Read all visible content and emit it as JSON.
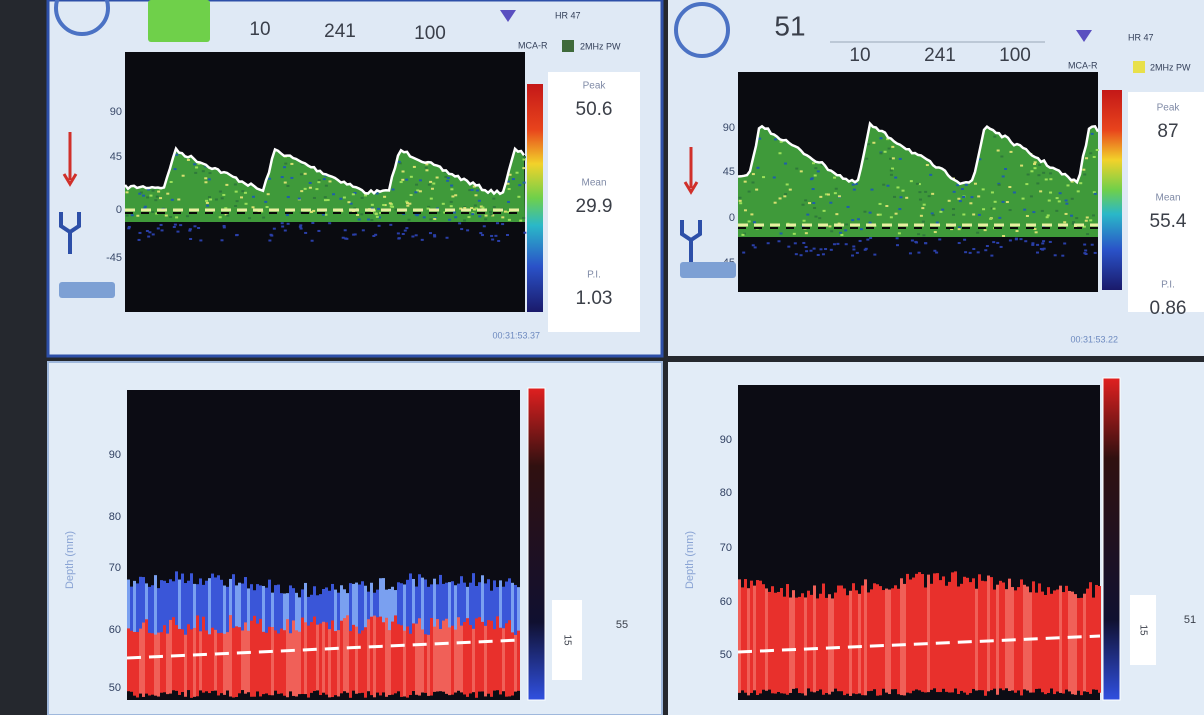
{
  "panels": [
    {
      "header": {
        "values": [
          "10",
          "241",
          "100"
        ],
        "hr": "HR 47",
        "vessel": "MCA-R",
        "mode": "2MHz PW"
      },
      "scale": [
        "90",
        "45",
        "0",
        "-45"
      ],
      "stats": [
        {
          "label": "Peak",
          "value": "50.6"
        },
        {
          "label": "Mean",
          "value": "29.9"
        },
        {
          "label": "P.I.",
          "value": "1.03"
        }
      ],
      "timestamp": "00:31:53.37"
    },
    {
      "header": {
        "gate": "51",
        "values": [
          "10",
          "241",
          "100"
        ],
        "hr": "HR 47",
        "vessel": "MCA-R",
        "mode": "2MHz PW"
      },
      "scale": [
        "90",
        "45",
        "0",
        "-45"
      ],
      "stats": [
        {
          "label": "Peak",
          "value": "87"
        },
        {
          "label": "Mean",
          "value": "55.4"
        },
        {
          "label": "P.I.",
          "value": "0.86"
        }
      ],
      "timestamp": "00:31:53.22"
    },
    {
      "depth_scale": [
        "90",
        "80",
        "70",
        "60",
        "50"
      ],
      "axis_label": "Depth (mm)",
      "gate_size": "15",
      "depth": "55"
    },
    {
      "depth_scale": [
        "90",
        "80",
        "70",
        "60",
        "50"
      ],
      "axis_label": "Depth (mm)",
      "gate_size": "15",
      "depth": "51"
    }
  ]
}
